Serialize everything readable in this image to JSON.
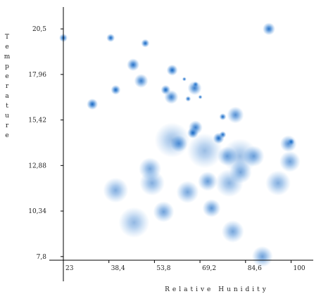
{
  "chart_data": {
    "type": "scatter",
    "x_label": "Relative Hunidity",
    "y_label": "Temperature",
    "color": "#1565c0",
    "x": [
      23,
      39.0,
      50.7,
      92.5,
      46.6,
      49.3,
      40.7,
      32.8,
      59.8,
      63.9,
      67.7,
      67.4,
      69.3,
      65.2,
      57.6,
      59.5,
      76.9,
      81.2,
      67.7,
      66.8,
      76.9,
      75.5,
      62.1,
      99.1,
      100,
      59.8,
      70.8,
      78.4,
      82.7,
      87.4,
      52.3,
      82.9,
      99.6,
      71.8,
      53.0,
      65.0,
      40.7,
      95.6,
      73.1,
      56.9,
      46.9,
      80.3,
      90.3,
      79.1
    ],
    "y": [
      20.0,
      20.0,
      19.7,
      20.5,
      18.5,
      17.6,
      17.1,
      16.3,
      18.2,
      17.7,
      17.4,
      17.2,
      16.7,
      16.6,
      17.1,
      16.7,
      15.6,
      15.7,
      15.0,
      14.7,
      14.6,
      14.4,
      14.1,
      14.1,
      14.2,
      14.3,
      13.7,
      13.4,
      13.4,
      13.4,
      12.7,
      12.5,
      13.1,
      12.0,
      11.9,
      11.4,
      11.5,
      11.9,
      10.5,
      10.3,
      9.7,
      9.2,
      7.8,
      11.9
    ],
    "sizes": [
      6,
      6,
      6,
      9,
      9,
      10,
      7,
      8,
      8,
      3,
      4,
      10,
      3,
      4,
      7,
      10,
      5,
      12,
      10,
      8,
      5,
      8,
      12,
      12,
      5,
      25,
      25,
      14,
      25,
      15,
      16,
      16,
      15,
      14,
      18,
      16,
      18,
      18,
      13,
      15,
      22,
      16,
      15,
      20
    ],
    "xlim": [
      23,
      107.5
    ],
    "ylim": [
      6.42,
      21.72
    ],
    "xticks": [
      23,
      {
        "value": 38.4,
        "label": "38,4"
      },
      {
        "value": 53.8,
        "label": "53,8"
      },
      {
        "value": 69.2,
        "label": "69,2"
      },
      {
        "value": 84.6,
        "label": "84,6"
      },
      100
    ],
    "yticks": [
      {
        "value": 7.8,
        "label": "7,8"
      },
      {
        "value": 10.34,
        "label": "10,34"
      },
      {
        "value": 12.88,
        "label": "12,88"
      },
      {
        "value": 15.42,
        "label": "15,42"
      },
      {
        "value": 17.96,
        "label": "17,96"
      },
      {
        "value": 20.5,
        "label": "20,5"
      }
    ]
  }
}
